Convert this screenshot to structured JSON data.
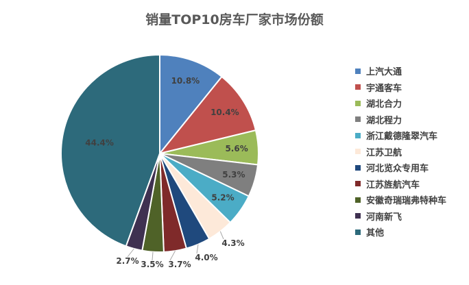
{
  "chart_data": {
    "type": "pie",
    "title": "销量TOP10房车厂家市场份额",
    "slices": [
      {
        "label": "上汽大通",
        "value": 10.8,
        "value_label": "10.8%",
        "color": "#4f81bd"
      },
      {
        "label": "宇通客车",
        "value": 10.4,
        "value_label": "10.4%",
        "color": "#c0504d"
      },
      {
        "label": "湖北合力",
        "value": 5.6,
        "value_label": "5.6%",
        "color": "#9bbb59"
      },
      {
        "label": "湖北程力",
        "value": 5.3,
        "value_label": "5.3%",
        "color": "#7f7f7f"
      },
      {
        "label": "浙江戴德隆翠汽车",
        "value": 5.2,
        "value_label": "5.2%",
        "color": "#4bacc6"
      },
      {
        "label": "江苏卫航",
        "value": 4.3,
        "value_label": "4.3%",
        "color": "#fde9d9"
      },
      {
        "label": "河北览众专用车",
        "value": 4.0,
        "value_label": "4.0%",
        "color": "#1f497d"
      },
      {
        "label": "江苏旌航汽车",
        "value": 3.7,
        "value_label": "3.7%",
        "color": "#7f2a2a"
      },
      {
        "label": "安徽奇瑞瑞弗特种车",
        "value": 3.5,
        "value_label": "3.5%",
        "color": "#4f6228"
      },
      {
        "label": "河南新飞",
        "value": 2.7,
        "value_label": "2.7%",
        "color": "#3f3151"
      },
      {
        "label": "其他",
        "value": 44.4,
        "value_label": "44.4%",
        "color": "#2d6a7b"
      }
    ],
    "start_angle": "12 o'clock",
    "direction": "clockwise",
    "legend_position": "right"
  }
}
